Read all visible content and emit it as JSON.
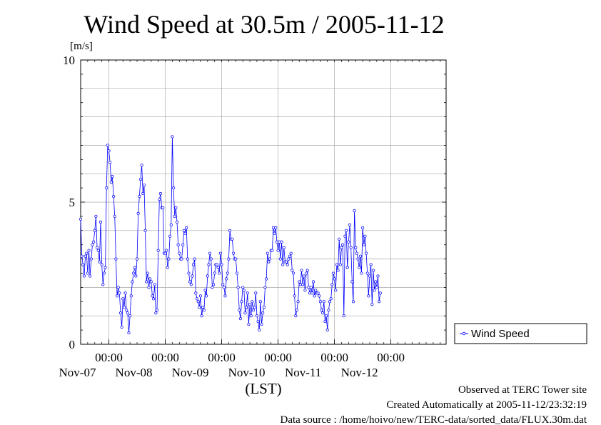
{
  "chart_data": {
    "type": "line",
    "title": "Wind Speed at 30.5m / 2005-11-12",
    "ylabel": "[m/s]",
    "xlabel": "(LST)",
    "ylim": [
      0,
      10
    ],
    "y_ticks": [
      "0",
      "5",
      "10"
    ],
    "x_range": [
      "2005-11-06 12:00",
      "2005-11-12 23:30"
    ],
    "x_ticks": [
      {
        "time": "00:00",
        "date": "Nov-07"
      },
      {
        "time": "00:00",
        "date": "Nov-08"
      },
      {
        "time": "00:00",
        "date": "Nov-09"
      },
      {
        "time": "00:00",
        "date": "Nov-10"
      },
      {
        "time": "00:00",
        "date": "Nov-11"
      },
      {
        "time": "00:00",
        "date": "Nov-12"
      }
    ],
    "grid": true,
    "legend_position": "right",
    "series": [
      {
        "name": "Wind Speed",
        "color": "#0000ff",
        "x_start": "2005-11-06 12:00",
        "step": "30min",
        "values": [
          4.4,
          3.1,
          2.8,
          2.4,
          3.1,
          3.2,
          2.5,
          3.3,
          2.4,
          3.0,
          3.5,
          3.6,
          4.0,
          4.5,
          3.4,
          3.3,
          2.9,
          4.3,
          2.8,
          2.1,
          2.5,
          2.7,
          5.5,
          7.0,
          6.8,
          6.4,
          5.7,
          5.9,
          5.2,
          4.5,
          3.0,
          1.7,
          2.0,
          1.8,
          1.1,
          0.6,
          1.6,
          1.3,
          1.8,
          1.2,
          1.1,
          0.4,
          1.0,
          1.7,
          2.2,
          2.5,
          2.7,
          2.4,
          3.0,
          4.6,
          5.2,
          5.8,
          6.3,
          5.3,
          5.6,
          4.0,
          2.2,
          2.5,
          2.0,
          2.3,
          2.2,
          1.7,
          1.6,
          2.1,
          1.1,
          1.2,
          3.3,
          5.1,
          5.3,
          4.8,
          4.8,
          3.2,
          3.2,
          3.3,
          2.7,
          3.0,
          3.8,
          4.2,
          7.3,
          5.5,
          4.5,
          4.8,
          4.3,
          3.5,
          3.2,
          3.0,
          3.0,
          3.5,
          4.0,
          3.9,
          4.1,
          3.0,
          2.5,
          2.2,
          2.1,
          2.4,
          2.8,
          3.0,
          1.8,
          1.6,
          1.5,
          1.3,
          1.7,
          1.0,
          1.3,
          1.2,
          1.9,
          1.7,
          2.4,
          2.8,
          3.2,
          3.0,
          2.0,
          2.1,
          2.5,
          2.8,
          2.8,
          2.7,
          2.5,
          3.2,
          2.8,
          2.1,
          2.0,
          1.7,
          2.3,
          2.5,
          3.0,
          4.0,
          3.7,
          3.7,
          3.2,
          3.0,
          3.0,
          2.5,
          2.0,
          1.2,
          0.9,
          1.5,
          2.0,
          1.9,
          1.1,
          1.3,
          1.8,
          0.7,
          1.4,
          1.0,
          1.5,
          1.2,
          1.3,
          1.8,
          1.0,
          0.8,
          0.5,
          1.5,
          0.7,
          1.1,
          1.3,
          2.0,
          2.3,
          3.2,
          2.9,
          3.0,
          3.3,
          3.3,
          4.1,
          3.9,
          4.1,
          3.6,
          3.3,
          3.6,
          3.0,
          3.6,
          2.8,
          3.4,
          2.9,
          2.9,
          2.8,
          3.0,
          3.1,
          3.2,
          2.6,
          2.5,
          1.7,
          1.0,
          1.2,
          1.5,
          2.2,
          2.1,
          2.6,
          2.1,
          2.4,
          1.9,
          2.5,
          2.6,
          2.0,
          1.8,
          2.0,
          1.8,
          2.2,
          1.7,
          1.9,
          1.8,
          1.8,
          1.7,
          1.5,
          1.2,
          1.1,
          1.5,
          0.8,
          1.0,
          0.5,
          1.2,
          1.5,
          1.6,
          2.1,
          2.5,
          2.3,
          1.9,
          2.8,
          2.6,
          3.7,
          2.8,
          3.4,
          3.5,
          1.0,
          3.8,
          4.0,
          2.7,
          3.6,
          4.2,
          3.4,
          2.2,
          1.5,
          4.7,
          3.4,
          3.2,
          3.0,
          2.7,
          3.1,
          2.5,
          4.1,
          3.5,
          3.8,
          3.2,
          2.5,
          1.7,
          2.4,
          2.8,
          1.4,
          2.6,
          1.9,
          2.2,
          2.0,
          2.4,
          1.5,
          1.8
        ]
      }
    ]
  },
  "annotations": {
    "observed": "Observed at TERC Tower site",
    "created": "Created Automatically at 2005-11-12/23:32:19",
    "source": "Data source : /home/hoivo/new/TERC-data/sorted_data/FLUX.30m.dat"
  }
}
